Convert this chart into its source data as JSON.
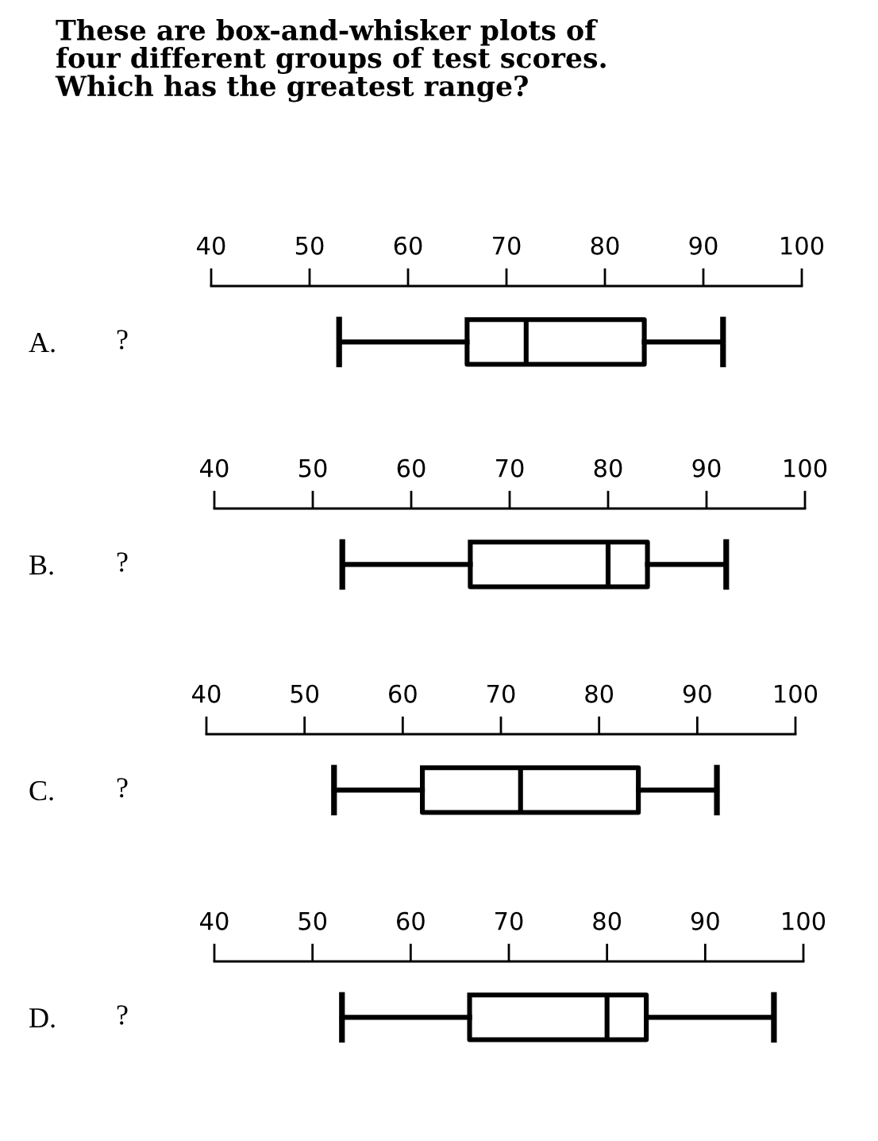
{
  "chart_data": [
    {
      "type": "box",
      "title": "These are box-and-whisker plots of\nfour different groups of test scores.\nWhich has the greatest range?",
      "annotations": [
        "?"
      ],
      "orientation": "horizontal",
      "categories": [
        "A."
      ],
      "xlim": [
        40,
        100
      ],
      "xticks": [
        40,
        50,
        60,
        70,
        80,
        90,
        100
      ],
      "boxes": [
        {
          "low": 53,
          "q1": 66,
          "median": 72,
          "q3": 84,
          "high": 92
        }
      ]
    },
    {
      "type": "box",
      "annotations": [
        "?"
      ],
      "orientation": "horizontal",
      "categories": [
        "B."
      ],
      "xlim": [
        40,
        100
      ],
      "xticks": [
        40,
        50,
        60,
        70,
        80,
        90,
        100
      ],
      "boxes": [
        {
          "low": 53,
          "q1": 66,
          "median": 80,
          "q3": 84,
          "high": 92
        }
      ]
    },
    {
      "type": "box",
      "annotations": [
        "?"
      ],
      "orientation": "horizontal",
      "categories": [
        "C."
      ],
      "xlim": [
        40,
        100
      ],
      "xticks": [
        40,
        50,
        60,
        70,
        80,
        90,
        100
      ],
      "boxes": [
        {
          "low": 53,
          "q1": 62,
          "median": 72,
          "q3": 84,
          "high": 92
        }
      ]
    },
    {
      "type": "box",
      "annotations": [
        "?"
      ],
      "orientation": "horizontal",
      "categories": [
        "D."
      ],
      "xlim": [
        40,
        100
      ],
      "xticks": [
        40,
        50,
        60,
        70,
        80,
        90,
        100
      ],
      "boxes": [
        {
          "low": 53,
          "q1": 66,
          "median": 80,
          "q3": 84,
          "high": 97
        }
      ]
    }
  ]
}
